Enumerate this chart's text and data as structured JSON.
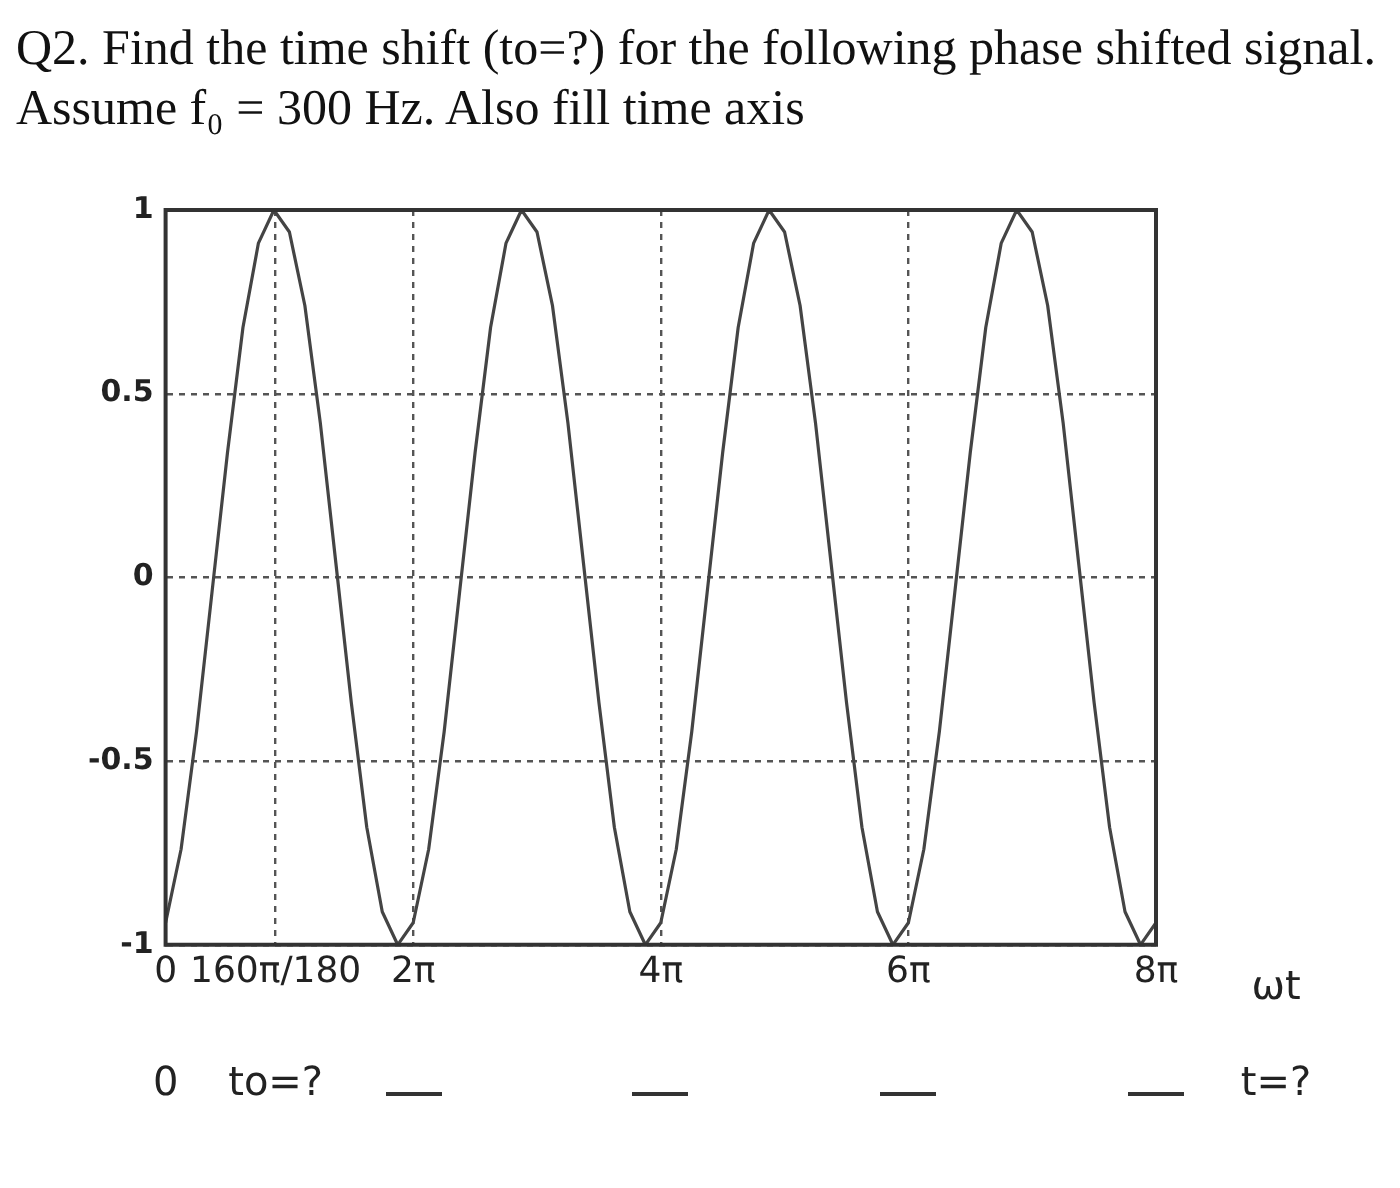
{
  "chart_data": {
    "type": "line",
    "title": "Q2. Find the time shift (to=?) for the following phase shifted signal. Assume f₀ = 300 Hz. Also fill time axis",
    "xlabel": "ωt",
    "x": [
      0,
      0.393,
      0.785,
      1.178,
      1.571,
      1.963,
      2.356,
      2.749,
      3.142,
      3.534,
      3.927,
      4.32,
      4.712,
      5.105,
      5.498,
      5.89,
      6.283,
      6.676,
      7.069,
      7.461,
      7.854,
      8.247,
      8.639,
      9.032,
      9.425,
      9.817,
      10.21,
      10.603,
      10.996,
      11.388,
      11.781,
      12.174,
      12.566,
      12.959,
      13.352,
      13.744,
      14.137,
      14.53,
      14.923,
      15.315,
      15.708,
      16.101,
      16.493,
      16.886,
      17.279,
      17.671,
      18.064,
      18.457,
      18.85,
      19.242,
      19.635,
      20.028,
      20.42,
      20.813,
      21.206,
      21.598,
      21.991,
      22.384,
      22.777,
      23.169,
      23.562,
      23.955,
      24.347,
      24.74,
      25.133
    ],
    "series": [
      {
        "color": "#444444",
        "values": [
          -0.94,
          -0.74,
          -0.42,
          -0.04,
          0.34,
          0.68,
          0.91,
          1.0,
          0.94,
          0.74,
          0.42,
          0.04,
          -0.34,
          -0.68,
          -0.91,
          -1.0,
          -0.94,
          -0.74,
          -0.42,
          -0.04,
          0.34,
          0.68,
          0.91,
          1.0,
          0.94,
          0.74,
          0.42,
          0.04,
          -0.34,
          -0.68,
          -0.91,
          -1.0,
          -0.94,
          -0.74,
          -0.42,
          -0.04,
          0.34,
          0.68,
          0.91,
          1.0,
          0.94,
          0.74,
          0.42,
          0.04,
          -0.34,
          -0.68,
          -0.91,
          -1.0,
          -0.94,
          -0.74,
          -0.42,
          -0.04,
          0.34,
          0.68,
          0.91,
          1.0,
          0.94,
          0.74,
          0.42,
          0.04,
          -0.34,
          -0.68,
          -0.91,
          -1.0,
          -0.94
        ]
      }
    ],
    "xlim": [
      0,
      25.133
    ],
    "xticks": [
      0,
      {
        "value": 2.7925,
        "label": "160π/180"
      },
      {
        "value": 6.2832,
        "label": "2π"
      },
      {
        "value": 12.5664,
        "label": "4π"
      },
      {
        "value": 18.8496,
        "label": "6π"
      },
      {
        "value": 25.1327,
        "label": "8π"
      }
    ],
    "ylim": [
      -1,
      1
    ],
    "yticks": [
      -1,
      -0.5,
      0,
      0.5,
      1
    ],
    "grid": true,
    "marker": "none",
    "line_style": "solid",
    "legend": false,
    "annotations": [
      "0",
      "to=?",
      "t=?"
    ]
  }
}
